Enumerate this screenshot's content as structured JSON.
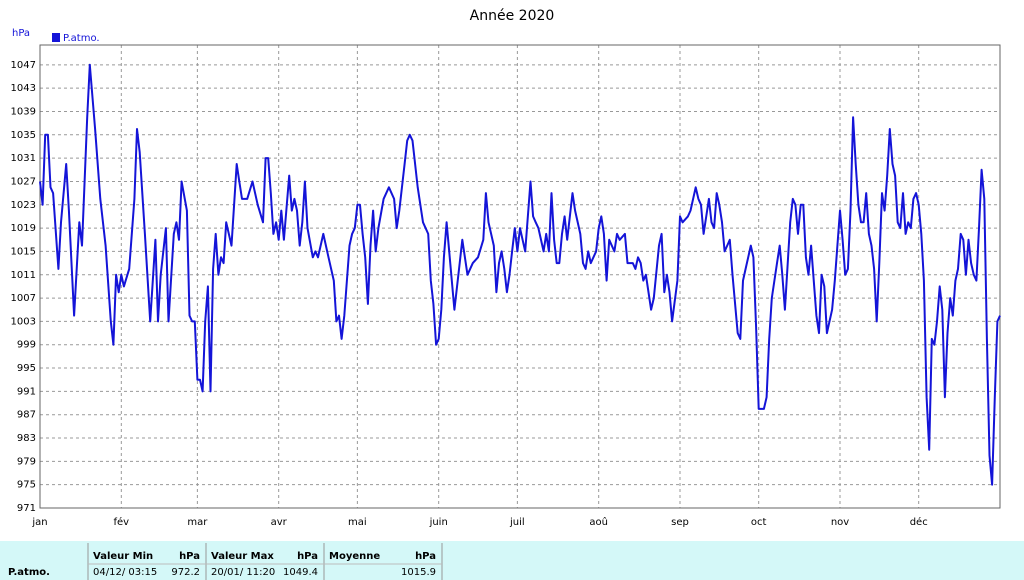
{
  "chart_data": {
    "type": "line",
    "title": "Année 2020",
    "y_label": "hPa",
    "series": [
      {
        "name": "P.atmo.",
        "color": "#1414d8",
        "values": [
          1027,
          1023,
          1035,
          1035,
          1026,
          1025,
          1012,
          1020,
          1030,
          1022,
          1004,
          1020,
          1016,
          1038,
          1047,
          1036,
          1024,
          1016,
          1003,
          999,
          1011,
          1008,
          1011,
          1009,
          1012,
          1024,
          1036,
          1032,
          1018,
          1003,
          1017,
          1003,
          1011,
          1019,
          1003,
          1018,
          1020,
          1017,
          1027,
          1022,
          1004,
          1003,
          1003,
          993,
          993,
          991,
          1003,
          1009,
          991,
          1012,
          1018,
          1011,
          1014,
          1013,
          1020,
          1016,
          1030,
          1027,
          1024,
          1024,
          1027,
          1023,
          1020,
          1031,
          1031,
          1025,
          1018,
          1020,
          1017,
          1022,
          1017,
          1028,
          1022,
          1024,
          1022,
          1016,
          1020,
          1027,
          1019,
          1014,
          1015,
          1014,
          1018,
          1014,
          1010,
          1003,
          1004,
          1000,
          1004,
          1016,
          1018,
          1019,
          1023,
          1023,
          1018,
          1014,
          1006,
          1016,
          1022,
          1015,
          1019,
          1024,
          1026,
          1024,
          1019,
          1022,
          1030,
          1034,
          1035,
          1034,
          1026,
          1020,
          1018,
          1010,
          1006,
          999,
          1000,
          1005,
          1014,
          1020,
          1015,
          1010,
          1005,
          1013,
          1017,
          1014,
          1011,
          1013,
          1014,
          1017,
          1025,
          1020,
          1016,
          1008,
          1013,
          1015,
          1012,
          1008,
          1011,
          1015,
          1019,
          1015,
          1019,
          1017,
          1015,
          1027,
          1021,
          1020,
          1019,
          1015,
          1018,
          1015,
          1025,
          1017,
          1013,
          1013,
          1018,
          1021,
          1017,
          1025,
          1022,
          1018,
          1013,
          1012,
          1015,
          1013,
          1015,
          1019,
          1021,
          1018,
          1010,
          1017,
          1015,
          1018,
          1017,
          1018,
          1013,
          1013,
          1012,
          1014,
          1013,
          1010,
          1011,
          1005,
          1007,
          1016,
          1018,
          1008,
          1011,
          1008,
          1003,
          1010,
          1021,
          1020,
          1021,
          1022,
          1026,
          1024,
          1023,
          1018,
          1024,
          1020,
          1019,
          1025,
          1023,
          1020,
          1015,
          1016,
          1017,
          1011,
          1001,
          1000,
          1010,
          1012,
          1014,
          1016,
          1014,
          1002,
          988,
          988,
          988,
          990,
          1000,
          1007,
          1013,
          1016,
          1011,
          1005,
          1020,
          1024,
          1023,
          1018,
          1023,
          1023,
          1014,
          1011,
          1016,
          1004,
          1001,
          1011,
          1009,
          1001,
          1003,
          1005,
          1010,
          1016,
          1022,
          1017,
          1011,
          1012,
          1022,
          1038,
          1030,
          1023,
          1020,
          1020,
          1025,
          1018,
          1016,
          1012,
          1003,
          1013,
          1025,
          1022,
          1028,
          1036,
          1030,
          1028,
          1020,
          1019,
          1025,
          1018,
          1020,
          1019,
          1024,
          1025,
          1023,
          1018,
          1010,
          990,
          981,
          1000,
          999,
          1003,
          1009,
          1005,
          990,
          1001,
          1007,
          1004,
          1010,
          1012,
          1018,
          1017,
          1011,
          1017,
          1013,
          1011,
          1010,
          1019,
          1029,
          1024,
          1000,
          980,
          975,
          990,
          1003,
          1004
        ]
      }
    ],
    "x": [
      0,
      1,
      2,
      3,
      4,
      5,
      7,
      8,
      10,
      11,
      13,
      15,
      16,
      18,
      19,
      21,
      23,
      25,
      27,
      28,
      29,
      30,
      31,
      32,
      34,
      36,
      37,
      38,
      40,
      42,
      44,
      45,
      46,
      48,
      49,
      51,
      52,
      53,
      54,
      56,
      57,
      58,
      59,
      60,
      61,
      62,
      63,
      64,
      65,
      66,
      67,
      68,
      69,
      70,
      71,
      73,
      75,
      76,
      77,
      79,
      81,
      83,
      85,
      86,
      87,
      88,
      89,
      90,
      91,
      92,
      93,
      95,
      96,
      97,
      98,
      99,
      100,
      101,
      102,
      104,
      105,
      106,
      108,
      110,
      112,
      113,
      114,
      115,
      116,
      118,
      119,
      120,
      121,
      122,
      123,
      124,
      125,
      126,
      127,
      128,
      129,
      131,
      133,
      135,
      136,
      137,
      139,
      140,
      141,
      142,
      144,
      146,
      148,
      149,
      150,
      151,
      152,
      153,
      154,
      155,
      156,
      157,
      158,
      160,
      161,
      162,
      163,
      165,
      167,
      169,
      170,
      171,
      173,
      174,
      175,
      176,
      177,
      178,
      179,
      180,
      181,
      182,
      183,
      184,
      185,
      187,
      188,
      189,
      190,
      192,
      193,
      194,
      195,
      196,
      197,
      198,
      199,
      200,
      201,
      203,
      204,
      206,
      207,
      208,
      209,
      210,
      212,
      213,
      214,
      215,
      216,
      217,
      219,
      220,
      221,
      223,
      224,
      226,
      227,
      228,
      229,
      230,
      231,
      233,
      234,
      236,
      237,
      238,
      239,
      240,
      241,
      243,
      244,
      245,
      247,
      248,
      250,
      251,
      252,
      253,
      255,
      256,
      257,
      258,
      259,
      260,
      261,
      262,
      263,
      264,
      266,
      267,
      268,
      269,
      270,
      271,
      272,
      273,
      274,
      275,
      276,
      277,
      278,
      279,
      281,
      282,
      283,
      284,
      286,
      287,
      288,
      289,
      290,
      291,
      292,
      293,
      294,
      296,
      297,
      298,
      299,
      300,
      301,
      302,
      303,
      304,
      305,
      306,
      307,
      308,
      309,
      310,
      311,
      312,
      313,
      314,
      315,
      316,
      317,
      318,
      319,
      320,
      321,
      322,
      323,
      324,
      325,
      326,
      327,
      328,
      329,
      330,
      331,
      332,
      333,
      334,
      335,
      336,
      337,
      338,
      339,
      340,
      341,
      342,
      343,
      344,
      345,
      346,
      347,
      348,
      349,
      350,
      351,
      352,
      353,
      354,
      355,
      356,
      357,
      358,
      359,
      360,
      361,
      362,
      363,
      364,
      365,
      366
    ],
    "xlim": [
      0,
      366
    ],
    "xticks": [
      {
        "value": 0,
        "label": "jan"
      },
      {
        "value": 31,
        "label": "fév"
      },
      {
        "value": 60,
        "label": "mar"
      },
      {
        "value": 91,
        "label": "avr"
      },
      {
        "value": 121,
        "label": "mai"
      },
      {
        "value": 152,
        "label": "juin"
      },
      {
        "value": 182,
        "label": "juil"
      },
      {
        "value": 213,
        "label": "aoû"
      },
      {
        "value": 244,
        "label": "sep"
      },
      {
        "value": 274,
        "label": "oct"
      },
      {
        "value": 305,
        "label": "nov"
      },
      {
        "value": 335,
        "label": "déc"
      }
    ],
    "ylim": [
      971,
      1050.4
    ],
    "yticks": [
      971,
      975,
      979,
      983,
      987,
      991,
      995,
      999,
      1003,
      1007,
      1011,
      1015,
      1019,
      1023,
      1027,
      1031,
      1035,
      1039,
      1043,
      1047
    ],
    "grid": true
  },
  "stats": {
    "row_label": "P.atmo.",
    "columns": [
      {
        "title": "Valeur Min",
        "unit": "hPa",
        "date": "04/12/ 03:15",
        "value": "972.2"
      },
      {
        "title": "Valeur Max",
        "unit": "hPa",
        "date": "20/01/ 11:20",
        "value": "1049.4"
      },
      {
        "title": "Moyenne",
        "unit": "hPa",
        "value": "1015.9"
      }
    ]
  }
}
